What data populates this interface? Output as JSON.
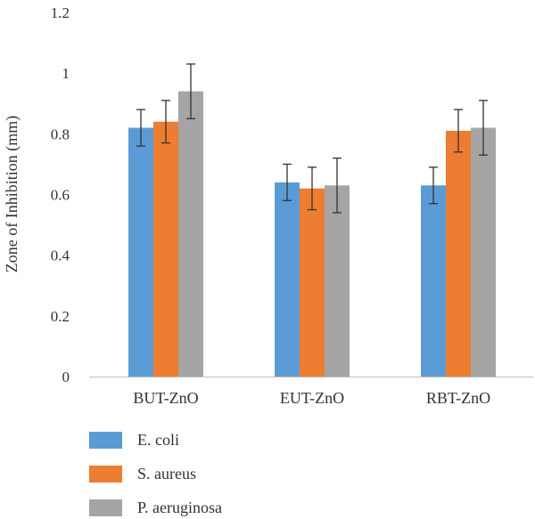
{
  "chart_data": {
    "type": "bar",
    "title": "",
    "xlabel": "",
    "ylabel": "Zone of Inhibition (mm)",
    "ylim": [
      0,
      1.2
    ],
    "yticks": [
      0,
      0.2,
      0.4,
      0.6,
      0.8,
      1,
      1.2
    ],
    "ytick_labels": [
      "0",
      "0.2",
      "0.4",
      "0.6",
      "0.8",
      "1",
      "1.2"
    ],
    "categories": [
      "BUT-ZnO",
      "EUT-ZnO",
      "RBT-ZnO"
    ],
    "series": [
      {
        "name": "E. coli",
        "color": "#5b9bd5",
        "values": [
          0.82,
          0.64,
          0.63
        ],
        "errors": [
          0.06,
          0.06,
          0.06
        ]
      },
      {
        "name": "S. aureus",
        "color": "#ed7d31",
        "values": [
          0.84,
          0.62,
          0.81
        ],
        "errors": [
          0.07,
          0.07,
          0.07
        ]
      },
      {
        "name": "P. aeruginosa",
        "color": "#a5a5a5",
        "values": [
          0.94,
          0.63,
          0.82
        ],
        "errors": [
          0.09,
          0.09,
          0.09
        ]
      }
    ],
    "legend_position": "bottom-left",
    "grid": false
  }
}
